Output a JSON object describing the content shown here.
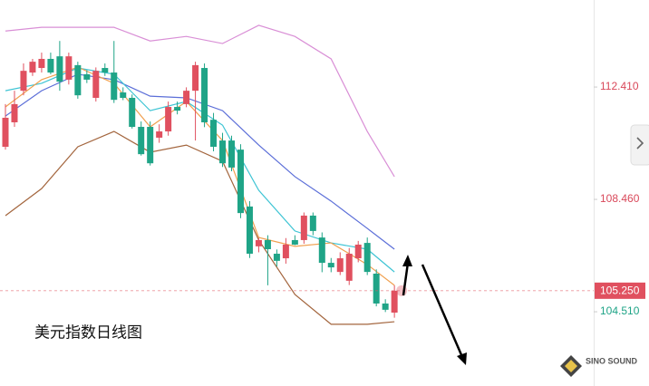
{
  "chart_data": {
    "type": "candlestick",
    "title": "美元指数日线图",
    "up_color": "#e0505f",
    "down_color": "#1fa487",
    "ylim": [
      101.9,
      115.47
    ],
    "yticks": [
      {
        "value": 112.41,
        "label": "112.410"
      },
      {
        "value": 108.46,
        "label": "108.460"
      },
      {
        "value": 104.51,
        "label": "104.510"
      }
    ],
    "last_price": {
      "value": 105.25,
      "label": "105.250",
      "color": "#e0505f"
    },
    "ohlc": [
      [
        110.31,
        111.81,
        110.21,
        111.33
      ],
      [
        111.17,
        112.28,
        111.01,
        111.81
      ],
      [
        112.28,
        113.24,
        112.12,
        112.98
      ],
      [
        112.92,
        113.4,
        112.8,
        113.3
      ],
      [
        113.08,
        113.62,
        112.92,
        113.4
      ],
      [
        113.4,
        113.62,
        112.86,
        112.92
      ],
      [
        113.49,
        114.03,
        112.28,
        112.6
      ],
      [
        112.67,
        113.62,
        112.5,
        113.49
      ],
      [
        113.18,
        113.3,
        112.0,
        112.12
      ],
      [
        112.86,
        113.0,
        112.55,
        112.67
      ],
      [
        112.03,
        113.1,
        111.9,
        112.98
      ],
      [
        113.08,
        113.24,
        112.8,
        112.92
      ],
      [
        112.92,
        114.03,
        111.85,
        111.96
      ],
      [
        112.22,
        112.4,
        111.95,
        112.03
      ],
      [
        112.03,
        112.15,
        110.95,
        111.01
      ],
      [
        111.01,
        111.2,
        110.0,
        110.05
      ],
      [
        111.01,
        111.2,
        109.65,
        109.73
      ],
      [
        110.63,
        111.1,
        110.45,
        110.85
      ],
      [
        110.85,
        111.9,
        110.7,
        111.71
      ],
      [
        111.71,
        111.9,
        111.45,
        111.58
      ],
      [
        111.81,
        112.4,
        111.7,
        112.28
      ],
      [
        112.28,
        113.3,
        110.53,
        113.18
      ],
      [
        113.08,
        113.24,
        111.0,
        111.17
      ],
      [
        111.26,
        111.5,
        110.15,
        110.31
      ],
      [
        110.53,
        110.8,
        109.6,
        109.73
      ],
      [
        110.53,
        110.7,
        109.45,
        109.58
      ],
      [
        110.21,
        110.4,
        107.8,
        107.98
      ],
      [
        108.21,
        108.4,
        106.4,
        106.55
      ],
      [
        106.81,
        107.1,
        106.6,
        107.03
      ],
      [
        107.03,
        107.2,
        105.44,
        106.71
      ],
      [
        106.55,
        106.7,
        106.1,
        106.3
      ],
      [
        106.39,
        107.1,
        106.2,
        106.87
      ],
      [
        107.03,
        107.2,
        106.85,
        106.87
      ],
      [
        107.03,
        108.0,
        106.9,
        107.89
      ],
      [
        107.89,
        108.0,
        107.2,
        107.35
      ],
      [
        107.12,
        107.3,
        105.9,
        106.23
      ],
      [
        106.23,
        106.4,
        105.9,
        106.07
      ],
      [
        105.91,
        106.6,
        105.8,
        106.39
      ],
      [
        105.6,
        106.75,
        105.45,
        106.55
      ],
      [
        106.39,
        107.0,
        106.25,
        106.87
      ],
      [
        106.93,
        107.12,
        105.8,
        105.91
      ],
      [
        105.85,
        106.0,
        104.7,
        104.8
      ],
      [
        104.8,
        104.95,
        104.5,
        104.58
      ],
      [
        104.48,
        105.44,
        104.3,
        105.25
      ]
    ],
    "overlays": [
      {
        "color": "#d98fd6",
        "x": [
          0,
          4,
          8,
          12,
          16,
          20,
          24,
          28,
          32,
          36,
          40,
          43
        ],
        "values": [
          114.38,
          114.51,
          114.51,
          114.51,
          114.03,
          114.19,
          113.94,
          114.58,
          114.19,
          113.4,
          110.85,
          109.26
        ]
      },
      {
        "color": "#a3653d",
        "x": [
          0,
          4,
          8,
          12,
          16,
          20,
          24,
          28,
          32,
          36,
          40,
          43
        ],
        "values": [
          107.89,
          108.84,
          110.31,
          110.85,
          110.12,
          110.37,
          109.8,
          107.03,
          105.12,
          104.07,
          104.07,
          104.16
        ]
      },
      {
        "color": "#5b6ed8",
        "x": [
          0,
          4,
          8,
          12,
          16,
          20,
          24,
          28,
          32,
          36,
          40,
          43
        ],
        "values": [
          111.39,
          112.28,
          112.86,
          112.67,
          112.09,
          112.03,
          111.58,
          110.37,
          109.26,
          108.4,
          107.44,
          106.71
        ]
      },
      {
        "color": "#3ec4d4",
        "x": [
          0,
          4,
          8,
          12,
          16,
          20,
          24,
          28,
          32,
          36,
          40,
          43
        ],
        "values": [
          112.28,
          112.54,
          113.08,
          112.86,
          111.58,
          111.9,
          111.07,
          108.78,
          107.35,
          106.93,
          106.71,
          105.91
        ]
      },
      {
        "color": "#f0a050",
        "x": [
          0,
          4,
          8,
          12,
          16,
          20,
          24,
          28,
          32,
          36,
          40,
          43
        ],
        "values": [
          111.71,
          112.67,
          113.11,
          112.54,
          111.01,
          111.9,
          110.53,
          107.12,
          106.81,
          106.93,
          106.17,
          105.44
        ]
      }
    ],
    "logo": "SINO SOUND"
  }
}
